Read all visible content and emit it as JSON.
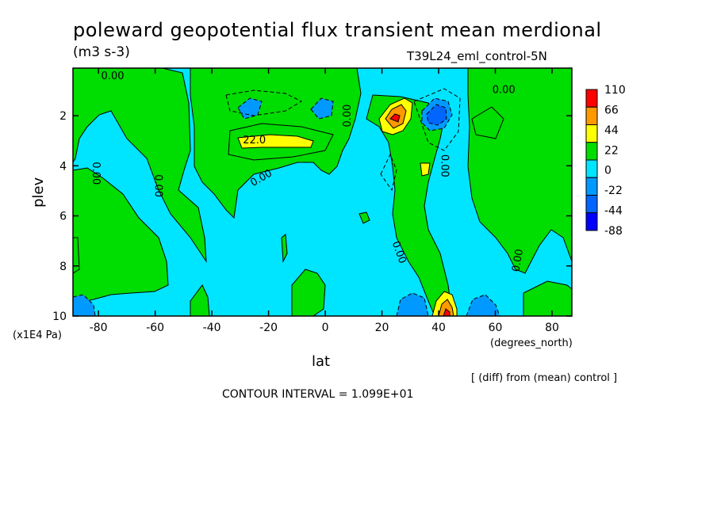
{
  "chart_data": {
    "type": "heatmap",
    "title": "poleward geopotential flux transient mean merdional",
    "units": "(m3 s-3)",
    "run_id": "T39L24_eml_control-5N",
    "xlabel": "lat",
    "ylabel": "plev",
    "x_unit": "(degrees_north)",
    "y_unit": "(x1E4 Pa)",
    "note": "[ (diff) from (mean) control ]",
    "contour_interval": "CONTOUR INTERVAL = 1.099E+01",
    "xlim": [
      -89,
      87
    ],
    "ylim": [
      0.1,
      10
    ],
    "x_ticks": [
      -80,
      -60,
      -40,
      -20,
      0,
      20,
      40,
      60,
      80
    ],
    "y_ticks": [
      2,
      4,
      6,
      8,
      10
    ],
    "legend": {
      "placement": "right",
      "labels": [
        "110",
        "66",
        "44",
        "22",
        "0",
        "-22",
        "-44",
        "-88"
      ],
      "colors": [
        "#ff0000",
        "#ff9900",
        "#ffff00",
        "#00dd00",
        "#00e5ff",
        "#0099ff",
        "#0066ff",
        "#0000ff"
      ]
    },
    "contour_labels": [
      {
        "text": "0.00",
        "lat": -75,
        "plev": 0.55,
        "angle": 0
      },
      {
        "text": "0.00",
        "lat": 63,
        "plev": 1.1,
        "angle": 0
      },
      {
        "text": "22.0",
        "lat": -25,
        "plev": 3.1,
        "angle": 0
      },
      {
        "text": "0.00",
        "lat": -22,
        "plev": 4.6,
        "angle": -30
      },
      {
        "text": "0.00",
        "lat": -82,
        "plev": 4.3,
        "angle": 90
      },
      {
        "text": "0.00",
        "lat": -60,
        "plev": 4.8,
        "angle": 90
      },
      {
        "text": "0.00",
        "lat": 9,
        "plev": 2.0,
        "angle": -90
      },
      {
        "text": "0.00",
        "lat": 41,
        "plev": 4.0,
        "angle": 90
      },
      {
        "text": "0.00",
        "lat": 25,
        "plev": 7.5,
        "angle": 70
      },
      {
        "text": "0.00",
        "lat": 69,
        "plev": 7.8,
        "angle": -80
      }
    ]
  }
}
